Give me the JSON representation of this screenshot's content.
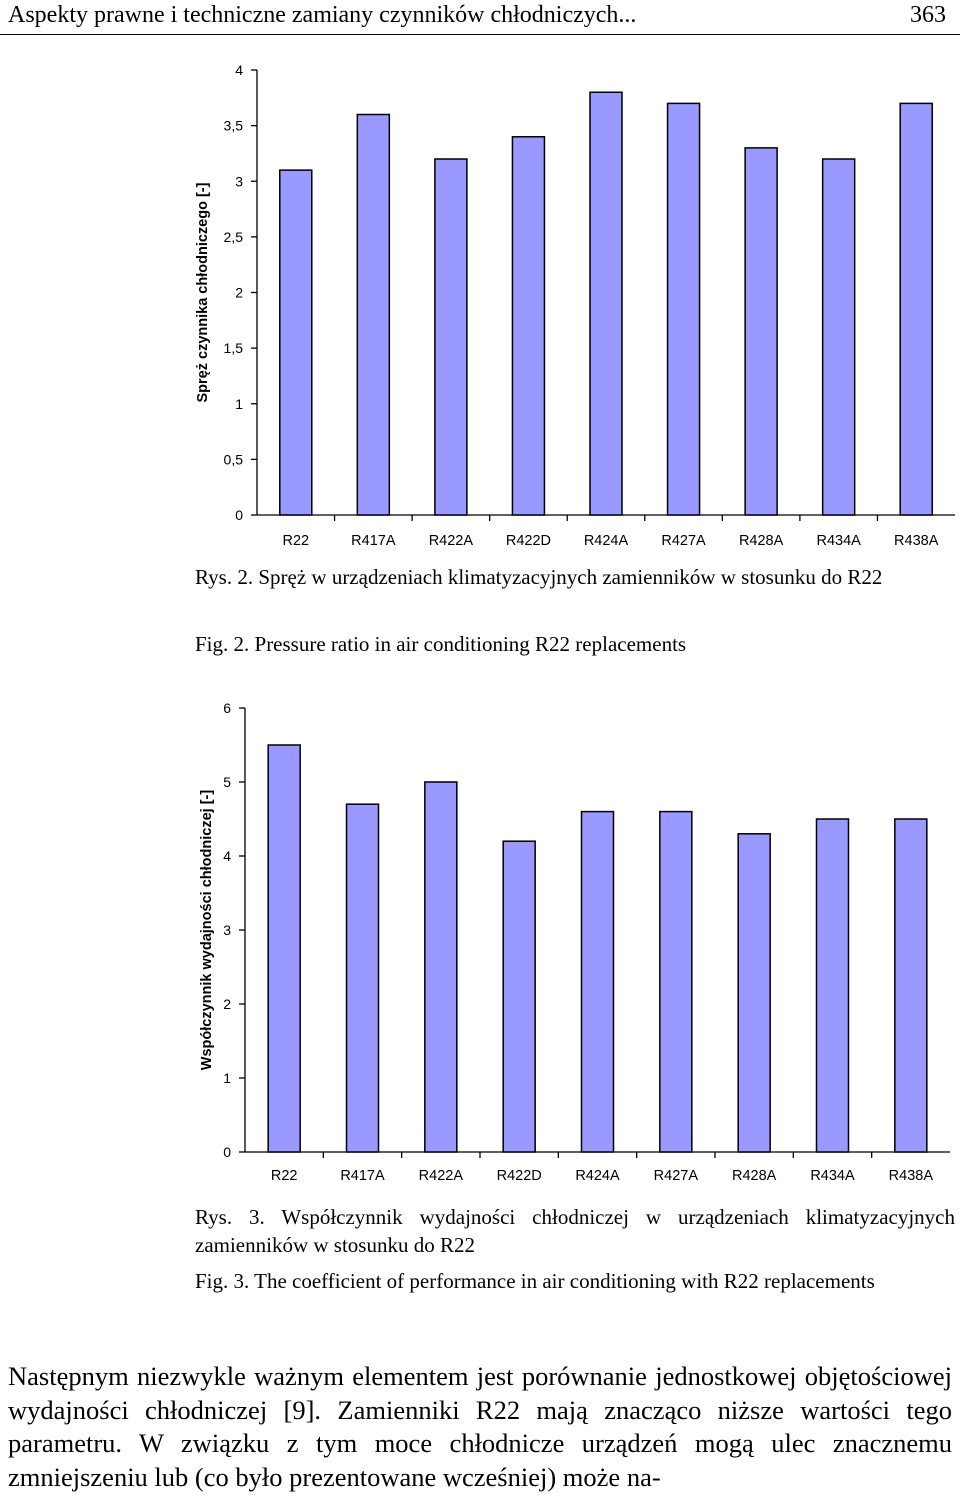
{
  "header": {
    "running_title": "Aspekty prawne i techniczne zamiany czynników chłodniczych...",
    "page_number": "363"
  },
  "chart_data": [
    {
      "type": "bar",
      "title": "",
      "xlabel": "",
      "ylabel": "Spręż czynnika chłodniczego [-]",
      "categories": [
        "R22",
        "R417A",
        "R422A",
        "R422D",
        "R424A",
        "R427A",
        "R428A",
        "R434A",
        "R438A"
      ],
      "values": [
        3.1,
        3.6,
        3.2,
        3.4,
        3.8,
        3.7,
        3.3,
        3.2,
        3.7
      ],
      "ylim": [
        0,
        4
      ],
      "yticks": [
        "0",
        "0,5",
        "1",
        "1,5",
        "2",
        "2,5",
        "3",
        "3,5",
        "4"
      ],
      "grid": false,
      "bar_color": "#9999ff"
    },
    {
      "type": "bar",
      "title": "",
      "xlabel": "",
      "ylabel": "Współczynnik wydajności chłodniczej [-]",
      "categories": [
        "R22",
        "R417A",
        "R422A",
        "R422D",
        "R424A",
        "R427A",
        "R428A",
        "R434A",
        "R438A"
      ],
      "values": [
        5.5,
        4.7,
        5.0,
        4.2,
        4.6,
        4.6,
        4.3,
        4.5,
        4.5
      ],
      "ylim": [
        0,
        6
      ],
      "yticks": [
        "0",
        "1",
        "2",
        "3",
        "4",
        "5",
        "6"
      ],
      "grid": false,
      "bar_color": "#9999ff"
    }
  ],
  "captions": {
    "fig2_pl": "Rys. 2. Spręż w urządzeniach klimatyzacyjnych zamienników w stosunku do R22",
    "fig2_en": "Fig. 2. Pressure ratio in air conditioning R22 replacements",
    "fig3_pl": "Rys. 3. Współczynnik wydajności chłodniczej w urządzeniach klimatyzacyj­nych zamienników w stosunku do R22",
    "fig3_en": "Fig. 3. The coefficient of performance in air conditioning with R22 replace­ments"
  },
  "body": {
    "paragraph": "Następnym niezwykle ważnym elementem jest porównanie jednostkowej objętościowej wydajności chłodniczej [9]. Zamienniki R22 mają znacząco niż­sze wartości tego parametru. W związku z tym moce chłodnicze urządzeń mogą ulec znacznemu zmniejszeniu lub (co było prezentowane wcześniej) może na-"
  }
}
